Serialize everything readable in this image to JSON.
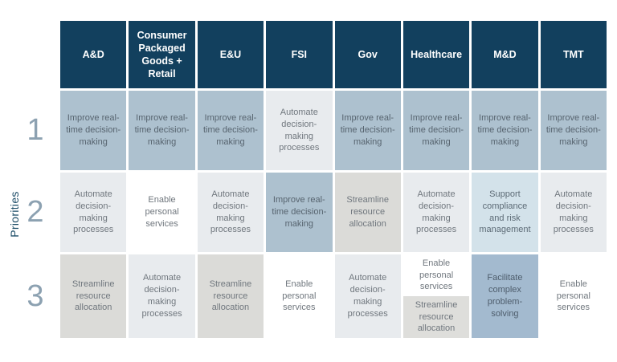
{
  "left_axis": {
    "label": "Priorities",
    "numbers": [
      "1",
      "2",
      "3"
    ]
  },
  "table": {
    "columns": [
      {
        "label": "A&D"
      },
      {
        "label": "Consumer Packaged Goods + Retail"
      },
      {
        "label": "E&U"
      },
      {
        "label": "FSI"
      },
      {
        "label": "Gov"
      },
      {
        "label": "Healthcare"
      },
      {
        "label": "M&D"
      },
      {
        "label": "TMT"
      }
    ],
    "rows": [
      {
        "number": "1",
        "cells": [
          {
            "text": "Improve real-time decision-making",
            "style": "blue"
          },
          {
            "text": "Improve real-time decision-making",
            "style": "blue"
          },
          {
            "text": "Improve real-time decision-making",
            "style": "blue"
          },
          {
            "text": "Automate decision-making processes",
            "style": "lightgray"
          },
          {
            "text": "Improve real-time decision-making",
            "style": "blue"
          },
          {
            "text": "Improve real-time decision-making",
            "style": "blue"
          },
          {
            "text": "Improve real-time decision-making",
            "style": "blue"
          },
          {
            "text": "Improve real-time decision-making",
            "style": "blue"
          }
        ]
      },
      {
        "number": "2",
        "cells": [
          {
            "text": "Automate decision-making processes",
            "style": "lightgray"
          },
          {
            "text": "Enable personal services",
            "style": "white"
          },
          {
            "text": "Automate decision-making processes",
            "style": "lightgray"
          },
          {
            "text": "Improve real-time decision-making",
            "style": "blue"
          },
          {
            "text": "Streamline resource allocation",
            "style": "warmgray"
          },
          {
            "text": "Automate decision-making processes",
            "style": "lightgray"
          },
          {
            "text": "Support compliance and risk management",
            "style": "lightblue"
          },
          {
            "text": "Automate decision-making processes",
            "style": "lightgray"
          }
        ]
      },
      {
        "number": "3",
        "cells": [
          {
            "text": "Streamline resource allocation",
            "style": "warmgray"
          },
          {
            "text": "Automate decision-making processes",
            "style": "lightgray"
          },
          {
            "text": "Streamline resource allocation",
            "style": "warmgray"
          },
          {
            "text": "Enable personal services",
            "style": "white"
          },
          {
            "text": "Automate decision-making processes",
            "style": "lightgray"
          },
          {
            "segments": [
              {
                "text": "Enable personal services",
                "style": "white"
              },
              {
                "text": "Streamline resource allocation",
                "style": "warmgray-light"
              }
            ]
          },
          {
            "text": "Facilitate complex problem-solving",
            "style": "medblue"
          },
          {
            "text": "Enable personal services",
            "style": "white"
          }
        ]
      }
    ]
  },
  "colors": {
    "header_bg": "#12405e",
    "improve_realtime": "#adc1cf",
    "automate_processes": "#e8ebee",
    "streamline_allocation": "#dbdbd8",
    "enable_personal": "#ffffff",
    "support_compliance": "#d3e2ea",
    "facilitate_problem_solving": "#a3bacf",
    "row_number": "#8ca1b1",
    "priorities_label": "#1d4d68"
  }
}
